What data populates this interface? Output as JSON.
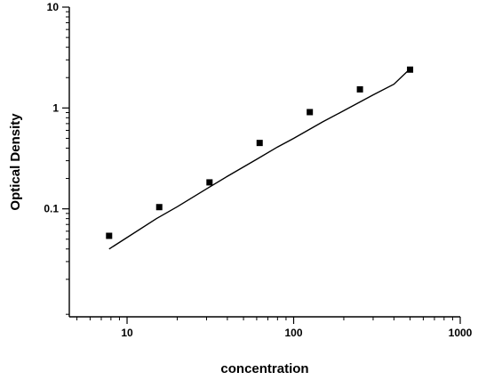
{
  "chart_data": {
    "type": "scatter",
    "xlabel": "concentration",
    "ylabel": "Optical Density",
    "xscale": "log",
    "yscale": "log",
    "xlim": [
      4.5,
      1000
    ],
    "ylim": [
      0.0085,
      10
    ],
    "x_ticks": [
      10,
      100,
      1000
    ],
    "x_tick_labels": [
      "10",
      "100",
      "1000"
    ],
    "y_ticks": [
      0.1,
      1,
      10
    ],
    "y_tick_labels": [
      "0.1",
      "1",
      "10"
    ],
    "grid": false,
    "series": [
      {
        "points": [
          {
            "x": 7.8,
            "y": 0.054
          },
          {
            "x": 15.6,
            "y": 0.104
          },
          {
            "x": 31.25,
            "y": 0.183
          },
          {
            "x": 62.5,
            "y": 0.45
          },
          {
            "x": 125,
            "y": 0.91
          },
          {
            "x": 250,
            "y": 1.53
          },
          {
            "x": 500,
            "y": 2.4
          }
        ],
        "fit": {
          "type": "four-parameter-logistic",
          "x": [
            7.8,
            10,
            15,
            20,
            30,
            40,
            60,
            80,
            100,
            150,
            200,
            300,
            400,
            500
          ],
          "y": [
            0.04,
            0.052,
            0.08,
            0.105,
            0.158,
            0.21,
            0.31,
            0.41,
            0.5,
            0.73,
            0.94,
            1.35,
            1.72,
            2.45
          ]
        }
      }
    ]
  }
}
